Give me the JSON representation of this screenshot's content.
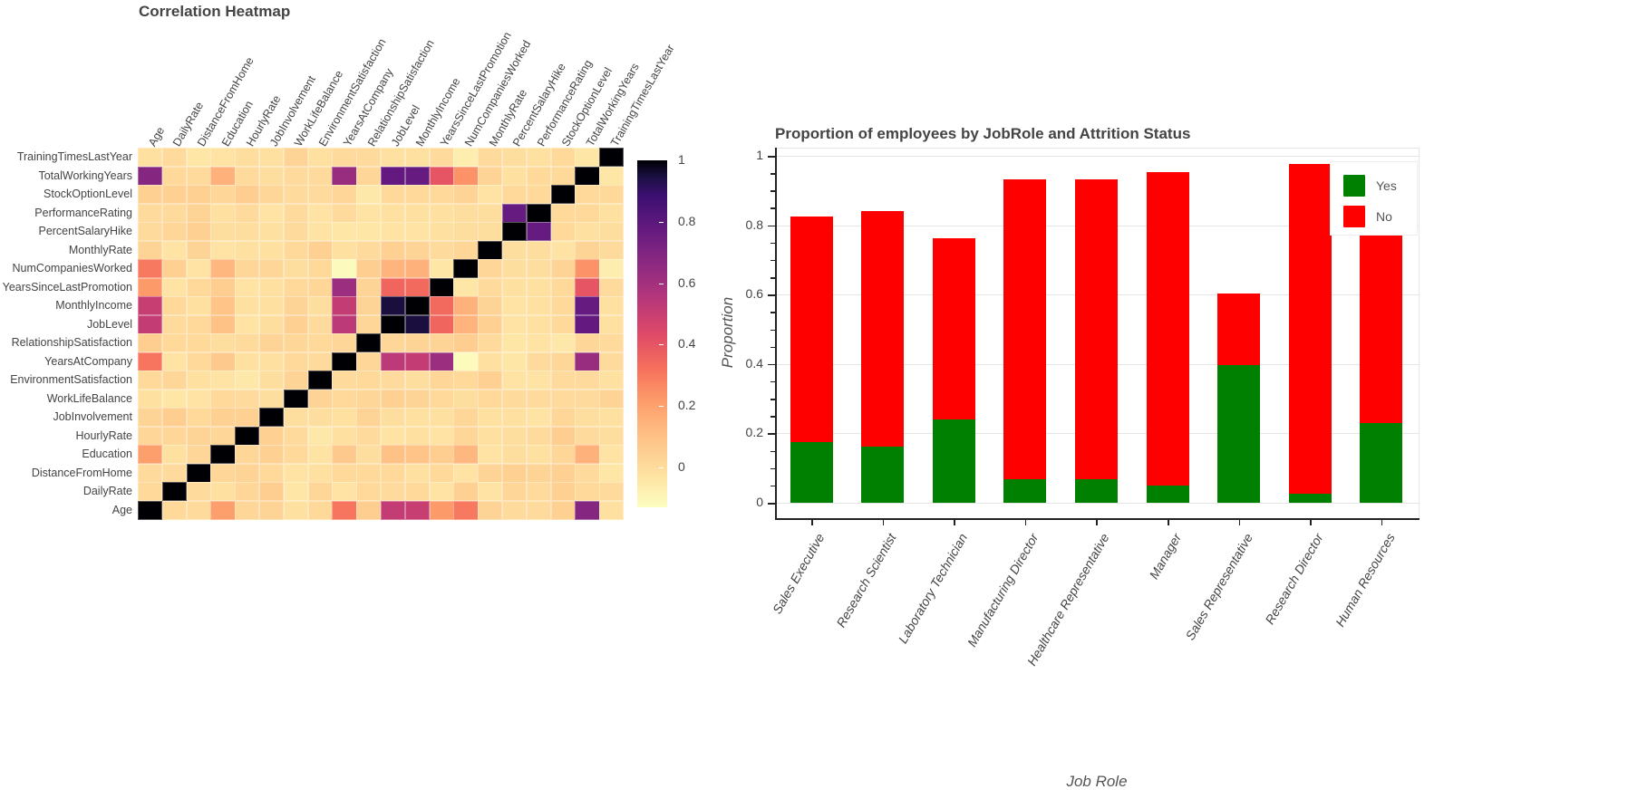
{
  "heatmap": {
    "title": "Correlation Heatmap",
    "colorbar": {
      "ticks": [
        "1",
        "0.8",
        "0.6",
        "0.4",
        "0.2",
        "0"
      ],
      "tick_values": [
        1,
        0.8,
        0.6,
        0.4,
        0.2,
        0
      ],
      "min": -0.13,
      "max": 1,
      "colormap": "magma_r"
    }
  },
  "barchart": {
    "title": "Proportion of employees by JobRole and Attrition Status",
    "ylabel": "Proportion",
    "xlabel": "Job Role",
    "yticks": [
      "1",
      "0.8",
      "0.6",
      "0.4",
      "0.2",
      "0"
    ],
    "legend": [
      {
        "label": "Yes",
        "color": "#008000"
      },
      {
        "label": "No",
        "color": "#ff0000"
      }
    ]
  },
  "chart_data": [
    {
      "type": "heatmap",
      "title": "Correlation Heatmap",
      "x_labels": [
        "Age",
        "DailyRate",
        "DistanceFromHome",
        "Education",
        "HourlyRate",
        "JobInvolvement",
        "WorkLifeBalance",
        "EnvironmentSatisfaction",
        "YearsAtCompany",
        "RelationshipSatisfaction",
        "JobLevel",
        "MonthlyIncome",
        "YearsSinceLastPromotion",
        "NumCompaniesWorked",
        "MonthlyRate",
        "PercentSalaryHike",
        "PerformanceRating",
        "StockOptionLevel",
        "TotalWorkingYears",
        "TrainingTimesLastYear"
      ],
      "y_labels_top_to_bottom": [
        "TrainingTimesLastYear",
        "TotalWorkingYears",
        "StockOptionLevel",
        "PerformanceRating",
        "PercentSalaryHike",
        "MonthlyRate",
        "NumCompaniesWorked",
        "YearsSinceLastPromotion",
        "MonthlyIncome",
        "JobLevel",
        "RelationshipSatisfaction",
        "YearsAtCompany",
        "EnvironmentSatisfaction",
        "WorkLifeBalance",
        "JobInvolvement",
        "HourlyRate",
        "Education",
        "DistanceFromHome",
        "DailyRate",
        "Age"
      ],
      "colorbar_range": [
        -0.13,
        1
      ],
      "colorbar_ticks": [
        0,
        0.2,
        0.4,
        0.6,
        0.8,
        1
      ],
      "matrix": [
        [
          1.0,
          0.01,
          0.0,
          0.21,
          0.02,
          0.03,
          -0.02,
          0.01,
          0.31,
          0.05,
          0.51,
          0.5,
          0.22,
          0.3,
          0.03,
          0.0,
          0.0,
          0.04,
          0.68,
          -0.02
        ],
        [
          0.01,
          1.0,
          -0.0,
          -0.02,
          0.02,
          0.05,
          -0.04,
          0.02,
          -0.03,
          0.01,
          0.0,
          0.01,
          -0.03,
          0.04,
          -0.03,
          0.02,
          0.0,
          0.04,
          0.01,
          0.0
        ],
        [
          0.0,
          -0.0,
          1.0,
          0.02,
          0.03,
          0.01,
          -0.03,
          -0.02,
          0.01,
          0.01,
          0.01,
          -0.02,
          0.01,
          -0.03,
          0.03,
          0.04,
          0.03,
          0.04,
          0.0,
          -0.04
        ],
        [
          0.21,
          -0.02,
          0.02,
          1.0,
          0.02,
          0.04,
          0.01,
          -0.03,
          0.07,
          -0.01,
          0.1,
          0.09,
          0.05,
          0.13,
          -0.03,
          -0.01,
          -0.02,
          0.02,
          0.15,
          -0.03
        ],
        [
          0.02,
          0.02,
          0.03,
          0.02,
          1.0,
          0.04,
          -0.0,
          -0.05,
          -0.02,
          0.0,
          -0.03,
          -0.02,
          -0.03,
          0.02,
          -0.02,
          -0.01,
          -0.0,
          0.05,
          -0.0,
          -0.01
        ],
        [
          0.03,
          0.05,
          0.01,
          0.04,
          0.04,
          1.0,
          -0.01,
          -0.01,
          -0.02,
          0.03,
          -0.01,
          -0.02,
          -0.02,
          0.02,
          -0.02,
          -0.02,
          -0.03,
          0.02,
          -0.01,
          -0.02
        ],
        [
          -0.02,
          -0.04,
          -0.03,
          0.01,
          -0.0,
          -0.01,
          1.0,
          0.03,
          0.01,
          0.02,
          0.04,
          0.03,
          0.01,
          -0.01,
          0.01,
          -0.0,
          0.0,
          0.0,
          0.0,
          0.03
        ],
        [
          0.01,
          0.02,
          -0.02,
          -0.03,
          -0.05,
          -0.01,
          0.03,
          1.0,
          0.0,
          0.01,
          0.0,
          -0.01,
          0.02,
          0.01,
          0.04,
          -0.03,
          -0.03,
          0.0,
          -0.0,
          -0.02
        ],
        [
          0.31,
          -0.03,
          0.01,
          0.07,
          -0.02,
          -0.02,
          0.01,
          0.0,
          1.0,
          0.02,
          0.53,
          0.51,
          0.62,
          -0.12,
          -0.02,
          -0.04,
          0.0,
          0.02,
          0.63,
          0.0
        ],
        [
          0.05,
          0.01,
          0.01,
          -0.01,
          0.0,
          0.03,
          0.02,
          0.01,
          0.02,
          1.0,
          0.02,
          0.03,
          0.03,
          0.05,
          -0.0,
          -0.04,
          -0.03,
          -0.05,
          0.02,
          0.0
        ],
        [
          0.51,
          0.0,
          0.01,
          0.1,
          -0.03,
          -0.01,
          0.04,
          0.0,
          0.53,
          0.02,
          1.0,
          0.95,
          0.35,
          0.14,
          0.04,
          -0.03,
          -0.02,
          0.01,
          0.78,
          -0.02
        ],
        [
          0.5,
          0.01,
          -0.02,
          0.09,
          -0.02,
          -0.02,
          0.03,
          -0.01,
          0.51,
          0.03,
          0.95,
          1.0,
          0.34,
          0.15,
          0.03,
          -0.03,
          -0.02,
          0.01,
          0.77,
          -0.02
        ],
        [
          0.22,
          -0.03,
          0.01,
          0.05,
          -0.03,
          -0.02,
          0.01,
          0.02,
          0.62,
          0.03,
          0.35,
          0.34,
          1.0,
          -0.04,
          -0.0,
          -0.02,
          -0.02,
          0.01,
          0.4,
          -0.0
        ],
        [
          0.3,
          0.04,
          -0.03,
          0.13,
          0.02,
          0.02,
          -0.01,
          0.01,
          -0.12,
          0.05,
          0.14,
          0.15,
          -0.04,
          1.0,
          0.02,
          -0.01,
          -0.01,
          0.03,
          0.24,
          -0.07
        ],
        [
          0.03,
          -0.03,
          0.03,
          -0.03,
          -0.02,
          -0.02,
          0.01,
          0.04,
          -0.02,
          -0.0,
          0.04,
          0.03,
          -0.0,
          0.02,
          1.0,
          -0.01,
          -0.01,
          -0.03,
          0.03,
          0.0
        ],
        [
          0.0,
          0.02,
          0.04,
          -0.01,
          -0.01,
          -0.02,
          -0.0,
          -0.03,
          -0.04,
          -0.04,
          -0.03,
          -0.03,
          -0.02,
          -0.01,
          -0.01,
          1.0,
          0.77,
          0.01,
          -0.02,
          -0.01
        ],
        [
          0.0,
          0.0,
          0.03,
          -0.02,
          -0.0,
          -0.03,
          0.0,
          -0.03,
          0.0,
          -0.03,
          -0.02,
          -0.02,
          -0.02,
          -0.01,
          -0.01,
          0.77,
          1.0,
          0.01,
          0.01,
          -0.02
        ],
        [
          0.04,
          0.04,
          0.04,
          0.02,
          0.05,
          0.02,
          0.0,
          0.0,
          0.02,
          -0.05,
          0.01,
          0.01,
          0.01,
          0.03,
          -0.03,
          0.01,
          0.01,
          1.0,
          0.01,
          0.01
        ],
        [
          0.68,
          0.01,
          0.0,
          0.15,
          -0.0,
          -0.01,
          0.0,
          -0.0,
          0.63,
          0.02,
          0.78,
          0.77,
          0.4,
          0.24,
          0.03,
          -0.02,
          0.01,
          0.01,
          1.0,
          -0.04
        ],
        [
          -0.02,
          0.0,
          -0.04,
          -0.03,
          -0.01,
          -0.02,
          0.03,
          -0.02,
          0.0,
          0.0,
          -0.02,
          -0.02,
          -0.0,
          -0.07,
          0.0,
          -0.01,
          -0.02,
          0.01,
          -0.04,
          1.0
        ]
      ]
    },
    {
      "type": "bar",
      "stacked": true,
      "title": "Proportion of employees by JobRole and Attrition Status",
      "xlabel": "Job Role",
      "ylabel": "Proportion",
      "ylim": [
        -0.05,
        1.02
      ],
      "yticks": [
        0,
        0.2,
        0.4,
        0.6,
        0.8,
        1
      ],
      "categories": [
        "Sales Executive",
        "Research Scientist",
        "Laboratory Technician",
        "Manufacturing Director",
        "Healthcare Representative",
        "Manager",
        "Sales Representative",
        "Research Director",
        "Human Resources"
      ],
      "series": [
        {
          "name": "Yes",
          "color": "#008000",
          "values": [
            0.175,
            0.161,
            0.239,
            0.069,
            0.069,
            0.049,
            0.398,
            0.025,
            0.231
          ]
        },
        {
          "name": "No",
          "color": "#ff0000",
          "values": [
            0.651,
            0.679,
            0.523,
            0.862,
            0.862,
            0.904,
            0.205,
            0.951,
            0.538
          ]
        }
      ],
      "legend_position": "top-right"
    }
  ]
}
